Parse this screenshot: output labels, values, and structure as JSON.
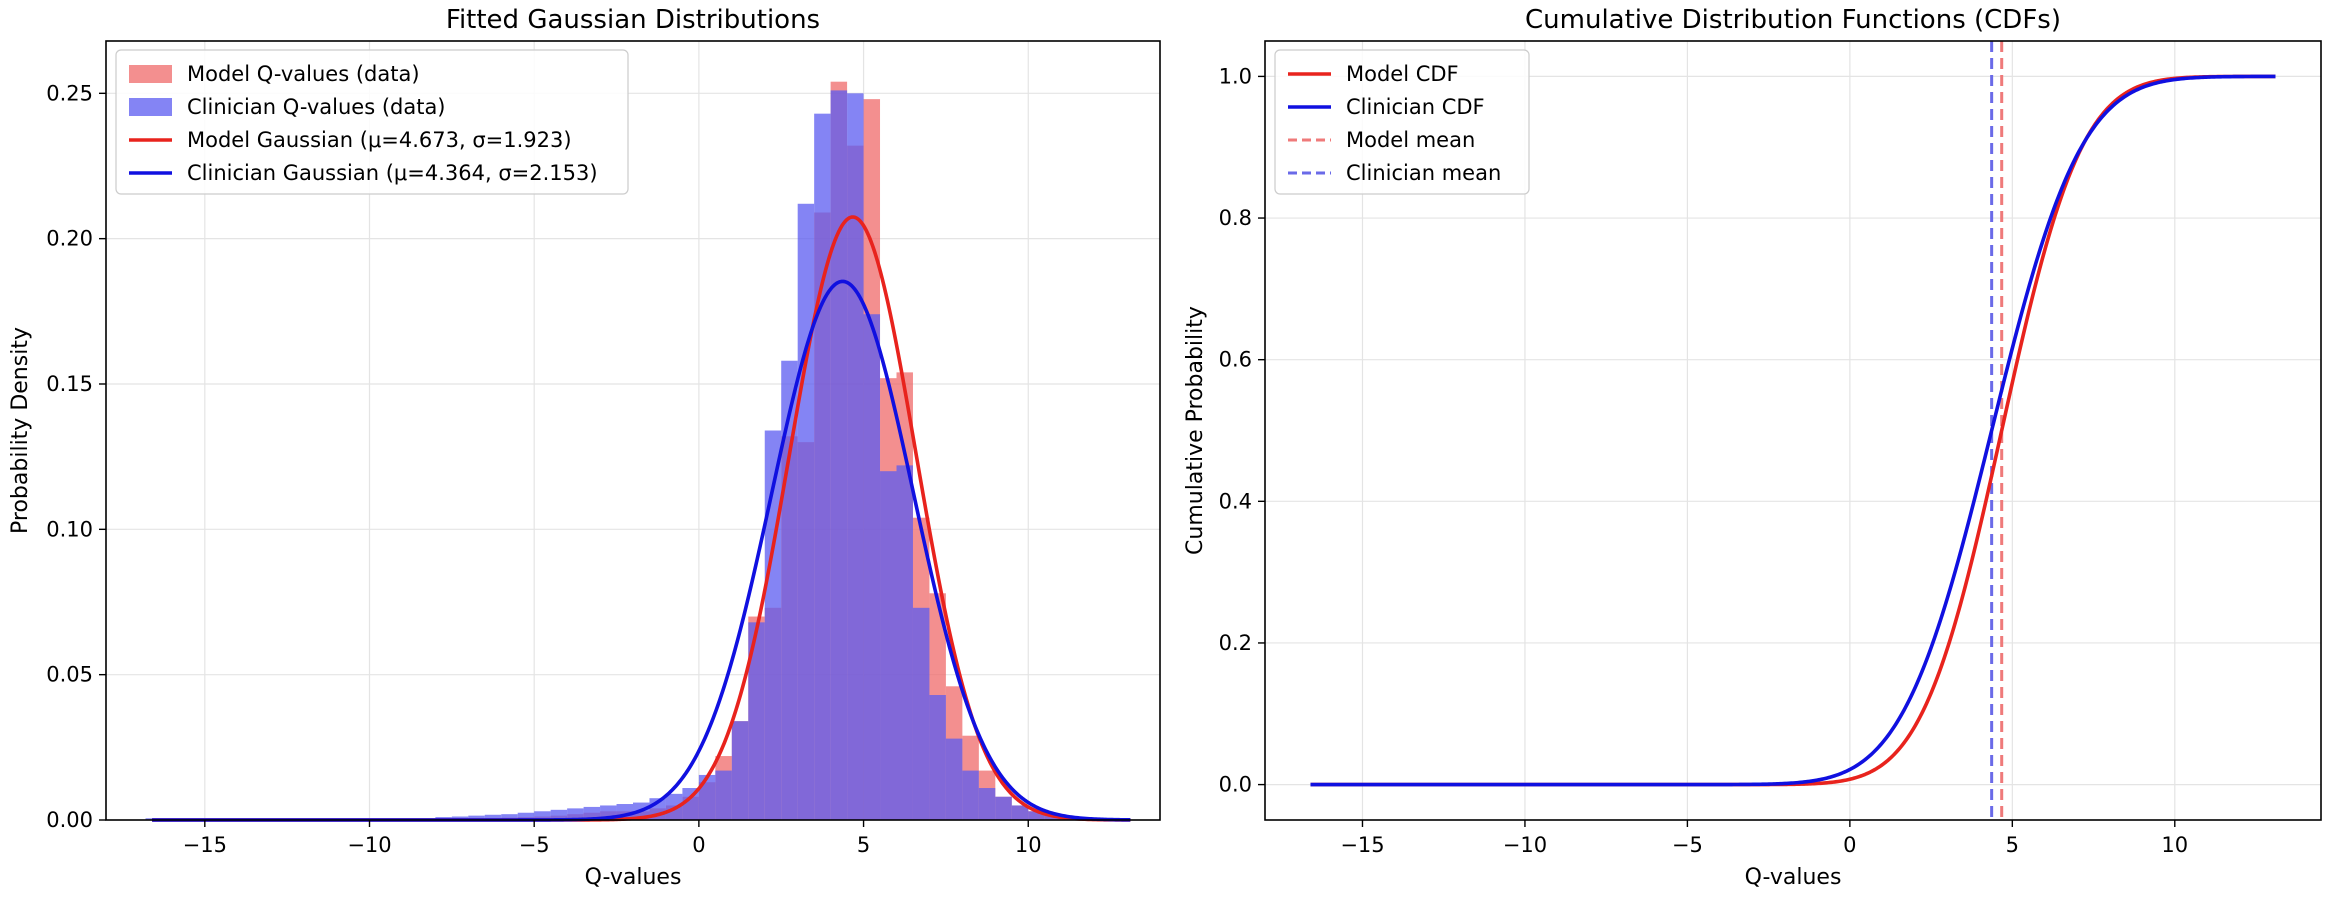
{
  "chart_data": [
    {
      "type": "histogram",
      "title": "Fitted Gaussian Distributions",
      "xlabel": "Q-values",
      "ylabel": "Probability Density",
      "xlim": [
        -18,
        14
      ],
      "ylim": [
        0,
        0.268
      ],
      "xticks": [
        -15,
        -10,
        -5,
        0,
        5,
        10
      ],
      "yticks": [
        0.0,
        0.05,
        0.1,
        0.15,
        0.2,
        0.25
      ],
      "xtick_labels": [
        "−15",
        "−10",
        "−5",
        "0",
        "5",
        "10"
      ],
      "ytick_labels": [
        "0.00",
        "0.05",
        "0.10",
        "0.15",
        "0.20",
        "0.25"
      ],
      "grid": true,
      "legend_position": "upper-left",
      "histograms": [
        {
          "name": "Model Q-values (data)",
          "color": "#ef6a6a",
          "opacity": 0.75,
          "edges": [
            -6.5,
            -6.0,
            -5.5,
            -5.0,
            -4.5,
            -4.0,
            -3.5,
            -3.0,
            -2.5,
            -2.0,
            -1.5,
            -1.0,
            -0.5,
            0.0,
            0.5,
            1.0,
            1.5,
            2.0,
            2.5,
            3.0,
            3.5,
            4.0,
            4.5,
            5.0,
            5.5,
            6.0,
            6.5,
            7.0,
            7.5,
            8.0,
            8.5,
            9.0,
            9.5,
            10.0,
            10.5,
            11.0,
            11.5
          ],
          "values": [
            0.0005,
            0.0008,
            0.001,
            0.0012,
            0.0015,
            0.002,
            0.0025,
            0.003,
            0.003,
            0.003,
            0.004,
            0.005,
            0.008,
            0.013,
            0.022,
            0.034,
            0.07,
            0.073,
            0.132,
            0.13,
            0.209,
            0.254,
            0.232,
            0.248,
            0.152,
            0.154,
            0.104,
            0.078,
            0.046,
            0.029,
            0.017,
            0.008,
            0.005,
            0.003,
            0.002,
            0.001
          ]
        },
        {
          "name": "Clinician Q-values (data)",
          "color": "#5b5bf0",
          "opacity": 0.75,
          "edges": [
            -16.8,
            -8.0,
            -7.5,
            -7.0,
            -6.5,
            -6.0,
            -5.5,
            -5.0,
            -4.5,
            -4.0,
            -3.5,
            -3.0,
            -2.5,
            -2.0,
            -1.5,
            -1.0,
            -0.5,
            0.0,
            0.5,
            1.0,
            1.5,
            2.0,
            2.5,
            3.0,
            3.5,
            4.0,
            4.5,
            5.0,
            5.5,
            6.0,
            6.5,
            7.0,
            7.5,
            8.0,
            8.5,
            9.0,
            9.5,
            10.0,
            10.5,
            11.0
          ],
          "values": [
            0.0006,
            0.001,
            0.0012,
            0.0015,
            0.0018,
            0.002,
            0.0025,
            0.003,
            0.0035,
            0.004,
            0.0045,
            0.005,
            0.0055,
            0.006,
            0.0075,
            0.009,
            0.011,
            0.0155,
            0.017,
            0.034,
            0.068,
            0.134,
            0.158,
            0.212,
            0.243,
            0.251,
            0.25,
            0.174,
            0.12,
            0.122,
            0.073,
            0.043,
            0.028,
            0.017,
            0.011,
            0.008,
            0.005,
            0.003,
            0.002
          ]
        }
      ],
      "series": [
        {
          "name": "Model Gaussian (μ=4.673, σ=1.923)",
          "type": "pdf",
          "mu": 4.673,
          "sigma": 1.923,
          "color": "#e8231d",
          "x_range": [
            -16.6,
            13.1
          ]
        },
        {
          "name": "Clinician Gaussian (μ=4.364, σ=2.153)",
          "type": "pdf",
          "mu": 4.364,
          "sigma": 2.153,
          "color": "#1010e0",
          "x_range": [
            -16.6,
            13.1
          ]
        }
      ],
      "legend": [
        "Model Q-values (data)",
        "Clinician Q-values (data)",
        "Model Gaussian (μ=4.673, σ=1.923)",
        "Clinician Gaussian (μ=4.364, σ=2.153)"
      ]
    },
    {
      "type": "line",
      "title": "Cumulative Distribution Functions (CDFs)",
      "xlabel": "Q-values",
      "ylabel": "Cumulative Probability",
      "xlim": [
        -18,
        14.5
      ],
      "ylim": [
        -0.05,
        1.05
      ],
      "xticks": [
        -15,
        -10,
        -5,
        0,
        5,
        10
      ],
      "yticks": [
        0.0,
        0.2,
        0.4,
        0.6,
        0.8,
        1.0
      ],
      "xtick_labels": [
        "−15",
        "−10",
        "−5",
        "0",
        "5",
        "10"
      ],
      "ytick_labels": [
        "0.0",
        "0.2",
        "0.4",
        "0.6",
        "0.8",
        "1.0"
      ],
      "grid": true,
      "legend_position": "upper-left",
      "series": [
        {
          "name": "Model CDF",
          "type": "cdf",
          "mu": 4.673,
          "sigma": 1.923,
          "color": "#e8231d",
          "x_range": [
            -16.6,
            13.1
          ]
        },
        {
          "name": "Clinician CDF",
          "type": "cdf",
          "mu": 4.364,
          "sigma": 2.153,
          "color": "#1010e0",
          "x_range": [
            -16.6,
            13.1
          ]
        }
      ],
      "vlines": [
        {
          "name": "Model mean",
          "x": 4.673,
          "color": "#ef7a7a"
        },
        {
          "name": "Clinician mean",
          "x": 4.364,
          "color": "#6a6ae8"
        }
      ],
      "legend": [
        "Model CDF",
        "Clinician CDF",
        "Model mean",
        "Clinician mean"
      ]
    }
  ]
}
